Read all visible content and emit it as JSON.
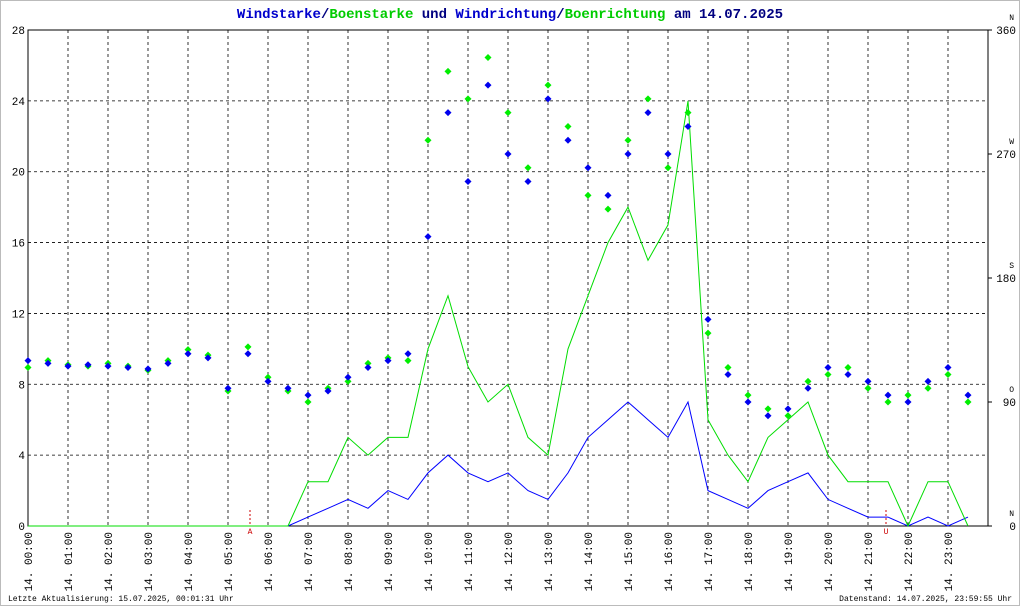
{
  "chart_data": {
    "type": "wind",
    "title_parts": [
      {
        "text": "Windstarke",
        "color": "#0000cc"
      },
      {
        "text": "/",
        "color": "#000080"
      },
      {
        "text": "Boenstarke",
        "color": "#00cc00"
      },
      {
        "text": " und ",
        "color": "#000080"
      },
      {
        "text": "Windrichtung",
        "color": "#0000cc"
      },
      {
        "text": "/",
        "color": "#000080"
      },
      {
        "text": "Boenrichtung",
        "color": "#00cc00"
      },
      {
        "text": " am 14.07.2025",
        "color": "#000080"
      }
    ],
    "footer_left": "Letzte Aktualisierung: 15.07.2025, 00:01:31 Uhr",
    "footer_right": "Datenstand: 14.07.2025, 23:59:55 Uhr",
    "x": [
      0,
      0.5,
      1,
      1.5,
      2,
      2.5,
      3,
      3.5,
      4,
      4.5,
      5,
      5.5,
      6,
      6.5,
      7,
      7.5,
      8,
      8.5,
      9,
      9.5,
      10,
      10.5,
      11,
      11.5,
      12,
      12.5,
      13,
      13.5,
      14,
      14.5,
      15,
      15.5,
      16,
      16.5,
      17,
      17.5,
      18,
      18.5,
      19,
      19.5,
      20,
      20.5,
      21,
      21.5,
      22,
      22.5,
      23,
      23.5
    ],
    "xlim": [
      0,
      24
    ],
    "xticks": [
      {
        "value": 0,
        "label": "14. 00:00"
      },
      {
        "value": 1,
        "label": "14. 01:00"
      },
      {
        "value": 2,
        "label": "14. 02:00"
      },
      {
        "value": 3,
        "label": "14. 03:00"
      },
      {
        "value": 4,
        "label": "14. 04:00"
      },
      {
        "value": 5,
        "label": "14. 05:00"
      },
      {
        "value": 6,
        "label": "14. 06:00"
      },
      {
        "value": 7,
        "label": "14. 07:00"
      },
      {
        "value": 8,
        "label": "14. 08:00"
      },
      {
        "value": 9,
        "label": "14. 09:00"
      },
      {
        "value": 10,
        "label": "14. 10:00"
      },
      {
        "value": 11,
        "label": "14. 11:00"
      },
      {
        "value": 12,
        "label": "14. 12:00"
      },
      {
        "value": 13,
        "label": "14. 13:00"
      },
      {
        "value": 14,
        "label": "14. 14:00"
      },
      {
        "value": 15,
        "label": "14. 15:00"
      },
      {
        "value": 16,
        "label": "14. 16:00"
      },
      {
        "value": 17,
        "label": "14. 17:00"
      },
      {
        "value": 18,
        "label": "14. 18:00"
      },
      {
        "value": 19,
        "label": "14. 19:00"
      },
      {
        "value": 20,
        "label": "14. 20:00"
      },
      {
        "value": 21,
        "label": "14. 21:00"
      },
      {
        "value": 22,
        "label": "14. 22:00"
      },
      {
        "value": 23,
        "label": "14. 23:00"
      }
    ],
    "ylim": [
      0,
      28
    ],
    "yticks": [
      0,
      4,
      8,
      12,
      16,
      20,
      24,
      28
    ],
    "y2lim": [
      0,
      360
    ],
    "y2ticks": [
      0,
      90,
      180,
      270,
      360
    ],
    "y2tick_compass": [
      "N",
      "O",
      "S",
      "W",
      "N"
    ],
    "grid": true,
    "annotations": [
      {
        "x": 5.55,
        "label": "A"
      },
      {
        "x": 21.45,
        "label": "U"
      }
    ],
    "series": [
      {
        "name": "Windstarke",
        "kind": "line",
        "color": "#0000ff",
        "values": [
          0,
          0,
          0,
          0,
          0,
          0,
          0,
          0,
          0,
          0,
          0,
          0,
          0,
          0,
          0.5,
          1,
          1.5,
          1,
          2,
          1.5,
          3,
          4,
          3,
          2.5,
          3,
          2,
          1.5,
          3,
          5,
          6,
          7,
          6,
          5,
          7,
          2,
          1.5,
          1,
          2,
          2.5,
          3,
          1.5,
          1,
          0.5,
          0.5,
          0,
          0.5,
          0,
          0.5
        ]
      },
      {
        "name": "Boenstarke",
        "kind": "line",
        "color": "#00dd00",
        "values": [
          0,
          0,
          0,
          0,
          0,
          0,
          0,
          0,
          0,
          0,
          0,
          0,
          0,
          0,
          2.5,
          2.5,
          5,
          4,
          5,
          5,
          10,
          13,
          9,
          7,
          8,
          5,
          4,
          10,
          13,
          16,
          18,
          15,
          17,
          24,
          6,
          4,
          2.5,
          5,
          6,
          7,
          4,
          2.5,
          2.5,
          2.5,
          0,
          2.5,
          2.5,
          0
        ]
      },
      {
        "name": "Boenrichtung",
        "kind": "points",
        "axis": "y2",
        "color": "#00ee00",
        "values": [
          115,
          120,
          117,
          116,
          118,
          116,
          113,
          120,
          128,
          124,
          98,
          130,
          108,
          98,
          90,
          100,
          105,
          118,
          122,
          120,
          280,
          330,
          310,
          340,
          300,
          260,
          320,
          290,
          240,
          230,
          280,
          310,
          260,
          300,
          140,
          115,
          95,
          85,
          80,
          105,
          110,
          115,
          100,
          90,
          95,
          100,
          110,
          90
        ]
      },
      {
        "name": "Windrichtung",
        "kind": "points",
        "axis": "y2",
        "color": "#0000ee",
        "values": [
          120,
          118,
          116,
          117,
          116,
          115,
          114,
          118,
          125,
          122,
          100,
          125,
          105,
          100,
          95,
          98,
          108,
          115,
          120,
          125,
          210,
          300,
          250,
          320,
          270,
          250,
          310,
          280,
          260,
          240,
          270,
          300,
          270,
          290,
          150,
          110,
          90,
          80,
          85,
          100,
          115,
          110,
          105,
          95,
          90,
          105,
          115,
          95
        ]
      }
    ]
  }
}
